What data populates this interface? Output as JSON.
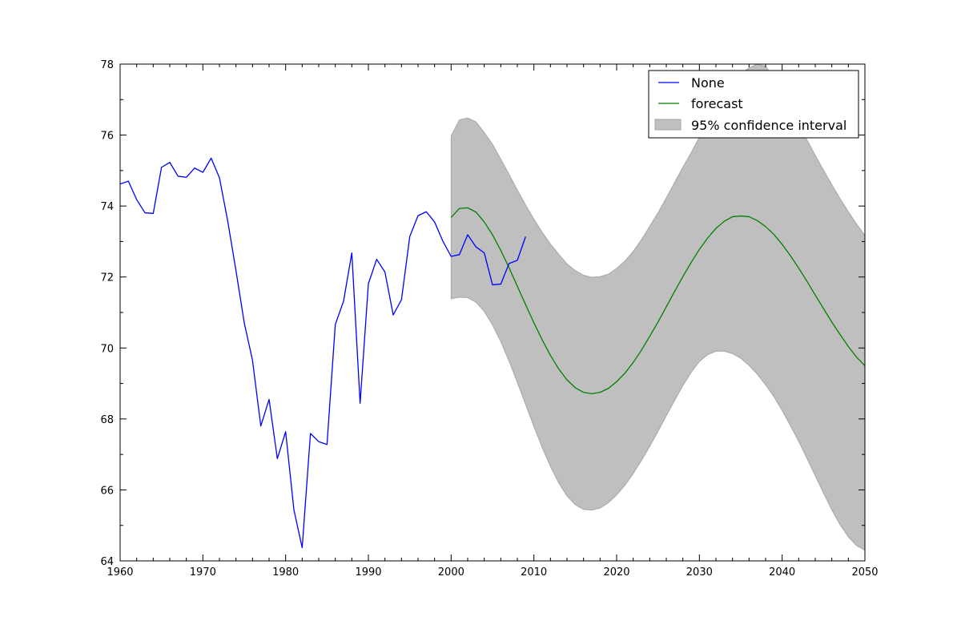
{
  "chart_data": {
    "type": "line",
    "xlim": [
      1960,
      2050
    ],
    "ylim": [
      64,
      78
    ],
    "x_ticks": [
      1960,
      1970,
      1980,
      1990,
      2000,
      2010,
      2020,
      2030,
      2040,
      2050
    ],
    "y_ticks": [
      64,
      66,
      68,
      70,
      72,
      74,
      76,
      78
    ],
    "grid": false,
    "legend_position": "top-right",
    "colors": {
      "observed": "#0000ff",
      "forecast": "#008000",
      "ci_fill": "#bfbfbf",
      "ci_edge": "#a6a6a6"
    },
    "series": [
      {
        "name": "None",
        "x": [
          1960,
          1961,
          1962,
          1963,
          1964,
          1965,
          1966,
          1967,
          1968,
          1969,
          1970,
          1971,
          1972,
          1973,
          1974,
          1975,
          1976,
          1977,
          1978,
          1979,
          1980,
          1981,
          1982,
          1983,
          1984,
          1985,
          1986,
          1987,
          1988,
          1989,
          1990,
          1991,
          1992,
          1993,
          1994,
          1995,
          1996,
          1997,
          1998,
          1999,
          2000,
          2001,
          2002,
          2003,
          2004,
          2005,
          2006,
          2007,
          2008,
          2009
        ],
        "values": [
          74.62,
          74.7,
          74.18,
          73.81,
          73.79,
          75.09,
          75.23,
          74.84,
          74.81,
          75.07,
          74.95,
          75.35,
          74.8,
          73.58,
          72.18,
          70.71,
          69.65,
          67.8,
          68.55,
          66.88,
          67.64,
          65.44,
          64.37,
          67.59,
          67.36,
          67.28,
          70.66,
          71.32,
          72.68,
          68.44,
          71.81,
          72.5,
          72.14,
          70.93,
          71.36,
          73.14,
          73.73,
          73.84,
          73.55,
          73.01,
          72.58,
          72.63,
          73.19,
          72.85,
          72.68,
          71.78,
          71.8,
          72.38,
          72.47,
          73.14
        ]
      },
      {
        "name": "forecast",
        "x": [
          2000,
          2001,
          2002,
          2003,
          2004,
          2005,
          2006,
          2007,
          2008,
          2009,
          2010,
          2011,
          2012,
          2013,
          2014,
          2015,
          2016,
          2017,
          2018,
          2019,
          2020,
          2021,
          2022,
          2023,
          2024,
          2025,
          2026,
          2027,
          2028,
          2029,
          2030,
          2031,
          2032,
          2033,
          2034,
          2035,
          2036,
          2037,
          2038,
          2039,
          2040,
          2041,
          2042,
          2043,
          2044,
          2045,
          2046,
          2047,
          2048,
          2049,
          2050
        ],
        "values": [
          73.68,
          73.93,
          73.95,
          73.83,
          73.55,
          73.19,
          72.75,
          72.26,
          71.74,
          71.22,
          70.71,
          70.23,
          69.79,
          69.41,
          69.1,
          68.88,
          68.75,
          68.71,
          68.75,
          68.86,
          69.05,
          69.29,
          69.59,
          69.94,
          70.33,
          70.73,
          71.16,
          71.59,
          72.01,
          72.41,
          72.78,
          73.1,
          73.37,
          73.57,
          73.7,
          73.72,
          73.7,
          73.59,
          73.42,
          73.2,
          72.92,
          72.6,
          72.25,
          71.88,
          71.49,
          71.11,
          70.73,
          70.38,
          70.04,
          69.74,
          69.5
        ]
      }
    ],
    "confidence_interval": {
      "name": "95% confidence interval",
      "x": [
        2000,
        2001,
        2002,
        2003,
        2004,
        2005,
        2006,
        2007,
        2008,
        2009,
        2010,
        2011,
        2012,
        2013,
        2014,
        2015,
        2016,
        2017,
        2018,
        2019,
        2020,
        2021,
        2022,
        2023,
        2024,
        2025,
        2026,
        2027,
        2028,
        2029,
        2030,
        2031,
        2032,
        2033,
        2034,
        2035,
        2036,
        2037,
        2038,
        2039,
        2040,
        2041,
        2042,
        2043,
        2044,
        2045,
        2046,
        2047,
        2048,
        2049,
        2050
      ],
      "lower": [
        71.39,
        71.43,
        71.42,
        71.29,
        71.03,
        70.65,
        70.18,
        69.63,
        69.03,
        68.41,
        67.79,
        67.2,
        66.66,
        66.2,
        65.83,
        65.58,
        65.45,
        65.43,
        65.49,
        65.64,
        65.86,
        66.13,
        66.46,
        66.83,
        67.23,
        67.65,
        68.09,
        68.52,
        68.94,
        69.31,
        69.62,
        69.81,
        69.91,
        69.91,
        69.84,
        69.71,
        69.51,
        69.26,
        68.96,
        68.63,
        68.24,
        67.81,
        67.37,
        66.89,
        66.4,
        65.91,
        65.44,
        65.02,
        64.68,
        64.43,
        64.3
      ],
      "upper": [
        75.97,
        76.43,
        76.48,
        76.37,
        76.07,
        75.74,
        75.32,
        74.89,
        74.45,
        74.03,
        73.63,
        73.26,
        72.93,
        72.64,
        72.37,
        72.18,
        72.05,
        71.99,
        72.01,
        72.08,
        72.24,
        72.45,
        72.72,
        73.05,
        73.43,
        73.81,
        74.23,
        74.66,
        75.09,
        75.5,
        75.94,
        76.39,
        76.83,
        77.23,
        77.56,
        77.73,
        77.89,
        78.0,
        77.94,
        77.62,
        77.32,
        76.71,
        76.29,
        75.86,
        75.43,
        75.01,
        74.6,
        74.21,
        73.84,
        73.49,
        73.17
      ]
    }
  },
  "legend": {
    "items": [
      {
        "label": "None"
      },
      {
        "label": "forecast"
      },
      {
        "label": "95% confidence interval"
      }
    ]
  }
}
